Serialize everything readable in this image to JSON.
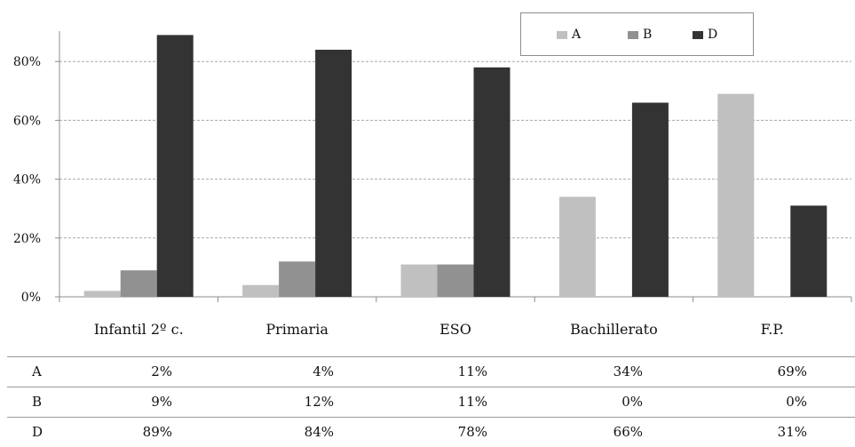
{
  "chart_data": {
    "type": "bar",
    "categories": [
      "Infantil 2º c.",
      "Primaria",
      "ESO",
      "Bachillerato",
      "F.P."
    ],
    "series": [
      {
        "name": "A",
        "values": [
          2,
          4,
          11,
          34,
          69
        ],
        "color": "#c0c0c0"
      },
      {
        "name": "B",
        "values": [
          9,
          12,
          11,
          0,
          0
        ],
        "color": "#919191"
      },
      {
        "name": "D",
        "values": [
          89,
          84,
          78,
          66,
          31
        ],
        "color": "#333333"
      }
    ],
    "y_ticks": [
      "0%",
      "20%",
      "40%",
      "60%",
      "80%"
    ],
    "y_tick_values": [
      0,
      20,
      40,
      60,
      80
    ],
    "ylim": [
      0,
      90
    ],
    "grid": true,
    "gridline_style": "dashed",
    "legend_position": "top-right",
    "title": "",
    "xlabel": "",
    "ylabel": ""
  },
  "table": {
    "rows": [
      {
        "label": "A",
        "values": [
          "2%",
          "4%",
          "11%",
          "34%",
          "69%"
        ]
      },
      {
        "label": "B",
        "values": [
          "9%",
          "12%",
          "11%",
          "0%",
          "0%"
        ]
      },
      {
        "label": "D",
        "values": [
          "89%",
          "84%",
          "78%",
          "66%",
          "31%"
        ]
      }
    ]
  }
}
